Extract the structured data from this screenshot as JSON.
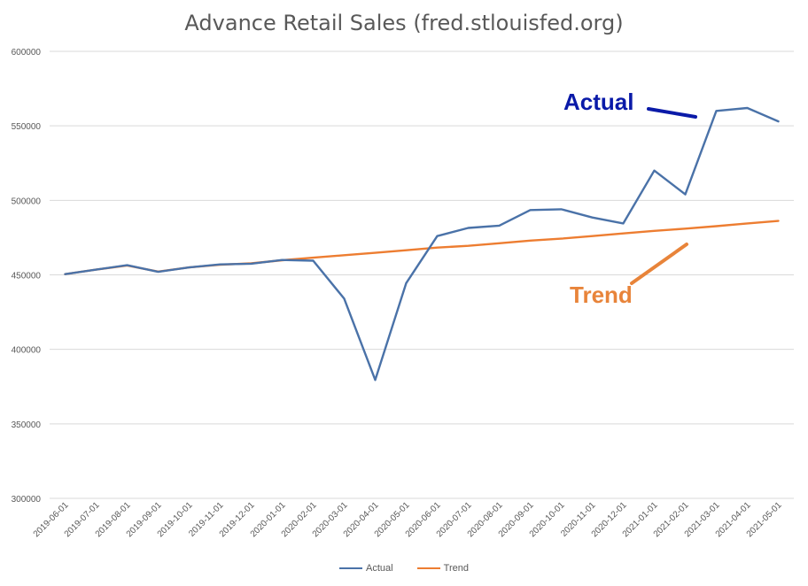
{
  "chart_data": {
    "type": "line",
    "title": "Advance Retail Sales (fred.stlouisfed.org)",
    "xlabel": "",
    "ylabel": "",
    "ylim": [
      300000,
      600000
    ],
    "yticks": [
      300000,
      350000,
      400000,
      450000,
      500000,
      550000,
      600000
    ],
    "grid": true,
    "legend_position": "bottom",
    "x": [
      "2019-06-01",
      "2019-07-01",
      "2019-08-01",
      "2019-09-01",
      "2019-10-01",
      "2019-11-01",
      "2019-12-01",
      "2020-01-01",
      "2020-02-01",
      "2020-03-01",
      "2020-04-01",
      "2020-05-01",
      "2020-06-01",
      "2020-07-01",
      "2020-08-01",
      "2020-09-01",
      "2020-10-01",
      "2020-11-01",
      "2020-12-01",
      "2021-01-01",
      "2021-02-01",
      "2021-03-01",
      "2021-04-01",
      "2021-05-01"
    ],
    "series": [
      {
        "name": "Actual",
        "color": "#4a72a8",
        "values": [
          450500,
          453500,
          456500,
          452000,
          455000,
          457000,
          457500,
          460000,
          459500,
          434000,
          379500,
          444500,
          476000,
          481500,
          483000,
          493500,
          494000,
          488500,
          484500,
          520000,
          504000,
          560000,
          562000,
          553000
        ]
      },
      {
        "name": "Trend",
        "color": "#ed7d31",
        "values": [
          450500,
          453500,
          456300,
          452200,
          455000,
          456800,
          457700,
          459800,
          461500,
          463200,
          464800,
          466500,
          468300,
          469500,
          471200,
          473000,
          474300,
          476000,
          477800,
          479500,
          481000,
          482700,
          484500,
          486200
        ]
      }
    ],
    "annotations": [
      {
        "text": "Actual",
        "color": "#0a1aa8"
      },
      {
        "text": "Trend",
        "color": "#e8843a"
      }
    ]
  }
}
